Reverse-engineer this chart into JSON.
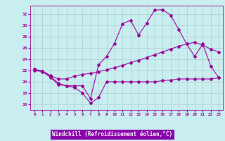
{
  "xlabel": "Windchill (Refroidissement éolien,°C)",
  "bg_color": "#c8eef0",
  "axis_bg_color": "#c8eef0",
  "line_color": "#990099",
  "xlabel_bg": "#9933cc",
  "grid_color": "#b0ccd0",
  "xlim": [
    -0.5,
    23.5
  ],
  "ylim": [
    15.0,
    33.5
  ],
  "yticks": [
    16,
    18,
    20,
    22,
    24,
    26,
    28,
    30,
    32
  ],
  "xticks": [
    0,
    1,
    2,
    3,
    4,
    5,
    6,
    7,
    8,
    9,
    10,
    11,
    12,
    13,
    14,
    15,
    16,
    17,
    18,
    19,
    20,
    21,
    22,
    23
  ],
  "series1_x": [
    0,
    1,
    2,
    3,
    4,
    5,
    6,
    7,
    8,
    9,
    10,
    11,
    12,
    13,
    14,
    15,
    16,
    17,
    18,
    19,
    20,
    21,
    22,
    23
  ],
  "series1_y": [
    22.0,
    21.8,
    20.8,
    19.5,
    19.3,
    19.0,
    18.0,
    16.2,
    17.2,
    20.0,
    20.0,
    20.0,
    20.0,
    20.0,
    20.0,
    20.0,
    20.2,
    20.3,
    20.5,
    20.5,
    20.5,
    20.5,
    20.5,
    20.7
  ],
  "series2_x": [
    0,
    1,
    2,
    3,
    4,
    5,
    6,
    7,
    8,
    9,
    10,
    11,
    12,
    13,
    14,
    15,
    16,
    17,
    18,
    19,
    20,
    21,
    22,
    23
  ],
  "series2_y": [
    22.2,
    21.9,
    21.0,
    19.7,
    19.3,
    19.3,
    19.3,
    17.0,
    23.0,
    24.5,
    26.8,
    30.3,
    30.9,
    28.3,
    30.4,
    32.7,
    32.8,
    31.8,
    29.3,
    26.7,
    24.5,
    26.7,
    22.8,
    20.7
  ],
  "series3_x": [
    0,
    1,
    2,
    3,
    4,
    5,
    6,
    7,
    8,
    9,
    10,
    11,
    12,
    13,
    14,
    15,
    16,
    17,
    18,
    19,
    20,
    21,
    22,
    23
  ],
  "series3_y": [
    22.2,
    21.9,
    21.1,
    20.5,
    20.5,
    21.0,
    21.3,
    21.5,
    21.8,
    22.1,
    22.5,
    22.9,
    23.4,
    23.8,
    24.3,
    24.8,
    25.3,
    25.8,
    26.3,
    26.7,
    27.0,
    26.5,
    25.8,
    25.3
  ]
}
